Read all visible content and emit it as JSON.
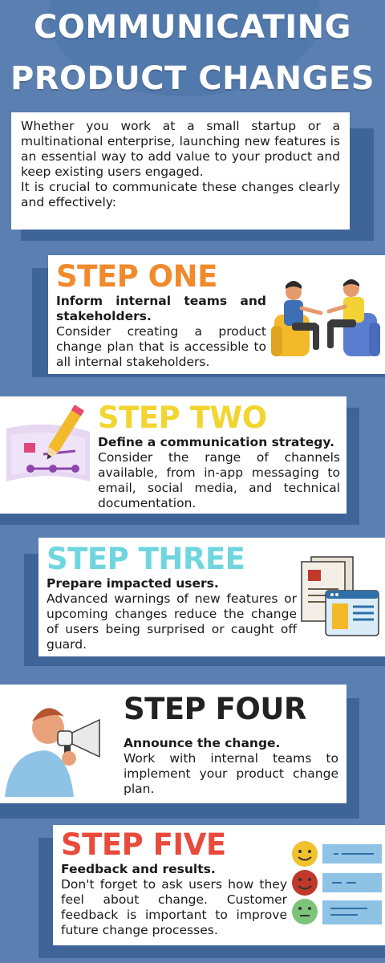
{
  "title": {
    "line1": "COMMUNICATING",
    "line2": "PRODUCT CHANGES"
  },
  "intro": {
    "paragraph1": "Whether you work at a small startup or a multinational enterprise, launching new features is an essential way to add value to your product and keep existing users engaged.",
    "paragraph2": "It is crucial to communicate these changes clearly and effectively:"
  },
  "steps": [
    {
      "title": "STEP ONE",
      "heading": "Inform internal teams and stakeholders.",
      "body": "Consider creating a product change plan that is accessible to all internal stakeholders.",
      "color": "#f08a2c"
    },
    {
      "title": "STEP TWO",
      "heading": "Define a communication strategy.",
      "body": "Consider the range of channels available, from in-app messaging to email, social media, and technical documentation.",
      "color": "#f2d530"
    },
    {
      "title": "STEP THREE",
      "heading": "Prepare impacted users.",
      "body": "Advanced warnings of new features or upcoming changes reduce the change of users being surprised or caught off guard.",
      "color": "#6fd6e0"
    },
    {
      "title": "STEP FOUR",
      "heading": "Announce the change.",
      "body": "Work with internal teams to implement your product change plan.",
      "color": "#222222"
    },
    {
      "title": "STEP FIVE",
      "heading": "Feedback and results.",
      "body": "Don't forget to ask users how they feel about change. Customer feedback is important to improve future change processes.",
      "color": "#e84b3c"
    }
  ],
  "colors": {
    "background": "#5a7fb0",
    "shadow": "#3f6497",
    "card": "#ffffff"
  },
  "icons": {
    "step1": "two-people-talking-illustration",
    "step2": "pencil-chart-illustration",
    "step3": "documents-browser-illustration",
    "step4": "person-megaphone-illustration",
    "step5": "feedback-emoji-illustration"
  }
}
